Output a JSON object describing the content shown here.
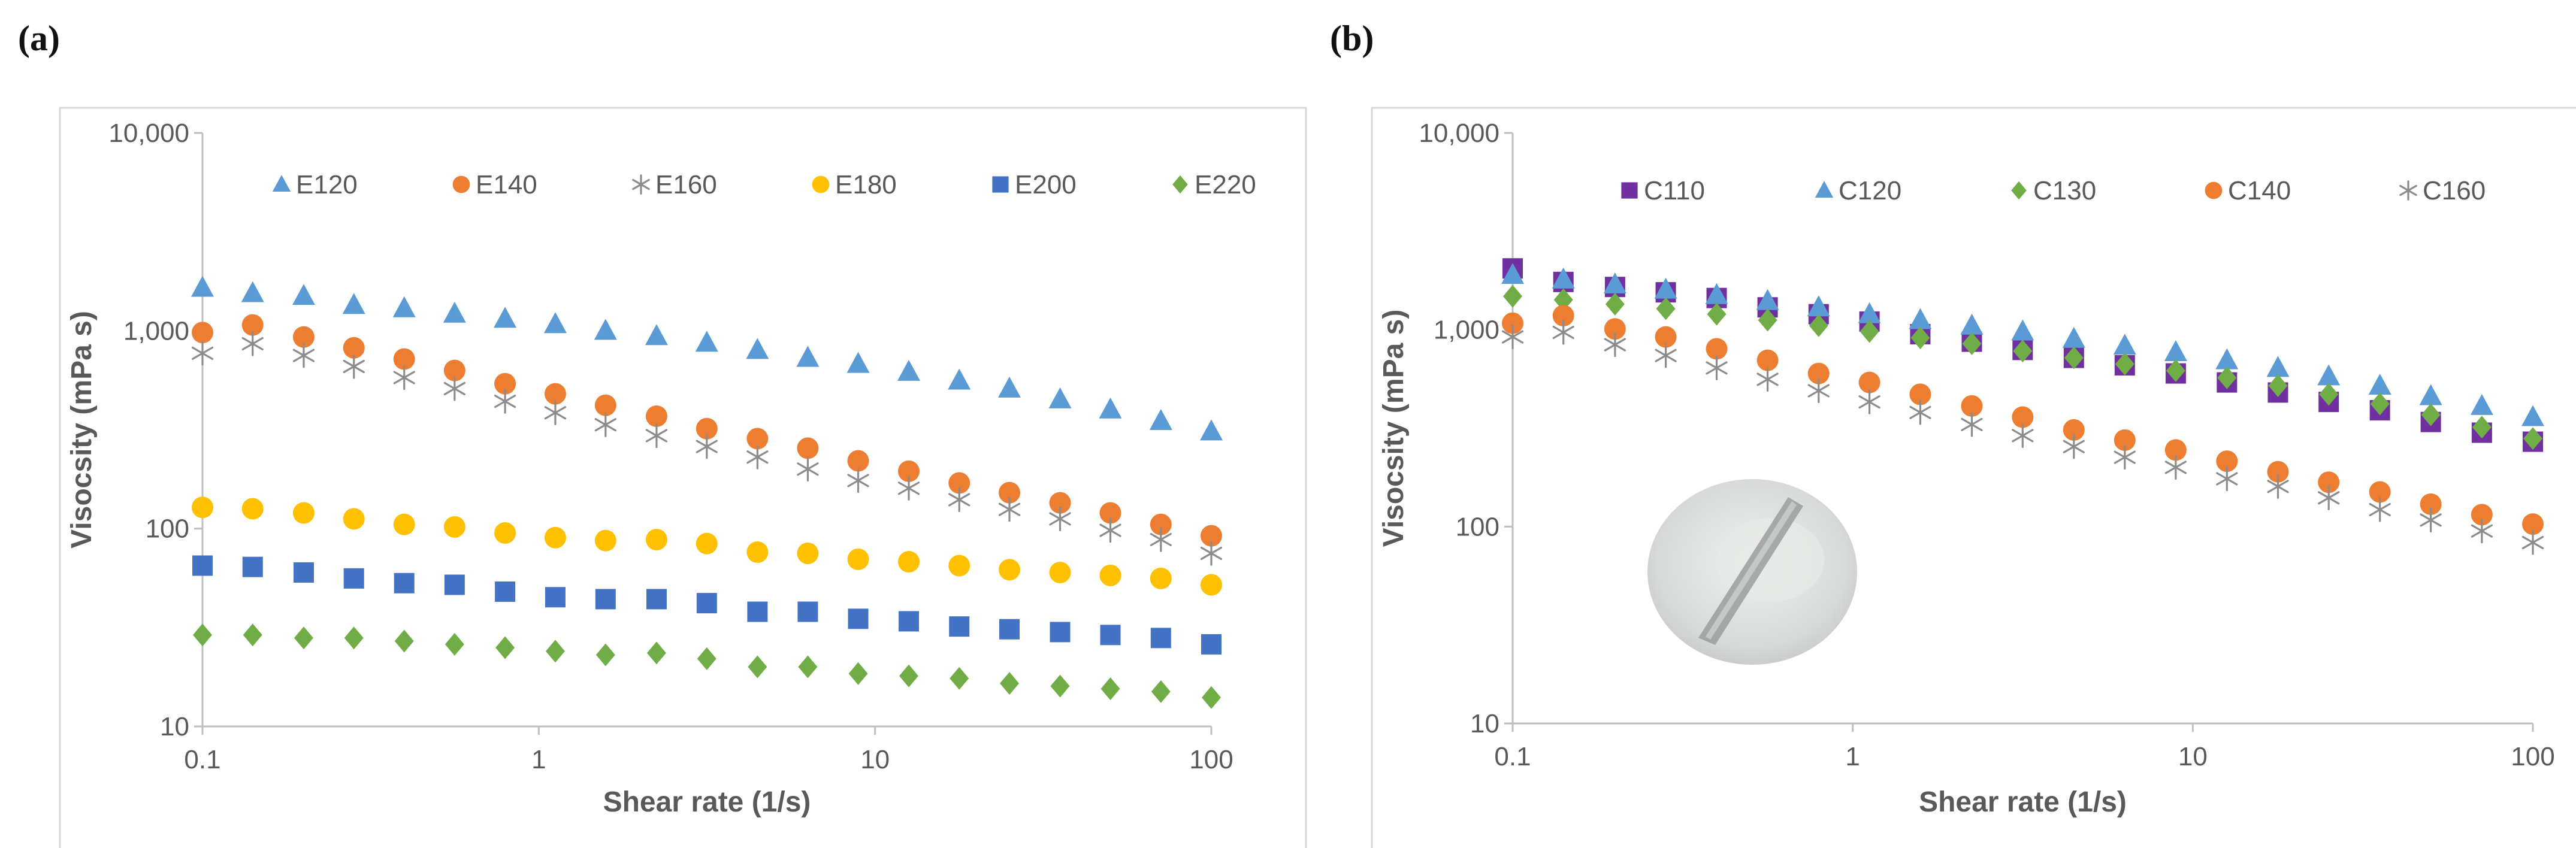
{
  "figure": {
    "panel_a_label": "(a)",
    "panel_b_label": "(b)"
  },
  "colors": {
    "blue_light": "#5b9bd5",
    "orange": "#ed7d31",
    "gray": "#8c8c8c",
    "yellow": "#ffc000",
    "blue_dark": "#4472c4",
    "green": "#70ad47",
    "purple": "#7030a0"
  },
  "chart_data": [
    {
      "type": "scatter",
      "panel": "(a)",
      "title": "",
      "xlabel": "Shear rate (1/s)",
      "ylabel": "Visocsity (mPa s)",
      "xscale": "log",
      "yscale": "log",
      "xlim": [
        0.1,
        100
      ],
      "ylim": [
        10,
        10000
      ],
      "xticks": [
        "0.1",
        "1",
        "10",
        "100"
      ],
      "yticks": [
        "10",
        "100",
        "1,000",
        "10,000"
      ],
      "legend_position": "top",
      "x": [
        0.1,
        0.141,
        0.2,
        0.282,
        0.398,
        0.562,
        0.794,
        1.12,
        1.58,
        2.24,
        3.16,
        4.47,
        6.31,
        8.91,
        12.6,
        17.8,
        25.1,
        35.5,
        50.1,
        70.8,
        100
      ],
      "series": [
        {
          "name": "E120",
          "marker": "triangle",
          "color": "#5b9bd5",
          "values": [
            1650,
            1550,
            1500,
            1350,
            1300,
            1220,
            1150,
            1080,
            1000,
            940,
            870,
            800,
            730,
            680,
            620,
            560,
            510,
            450,
            400,
            350,
            310
          ]
        },
        {
          "name": "E140",
          "marker": "circle",
          "color": "#ed7d31",
          "values": [
            980,
            1070,
            930,
            820,
            720,
            630,
            540,
            480,
            420,
            370,
            320,
            285,
            255,
            220,
            195,
            170,
            152,
            135,
            120,
            105,
            92
          ]
        },
        {
          "name": "E160",
          "marker": "asterisk",
          "color": "#8c8c8c",
          "values": [
            770,
            860,
            750,
            660,
            580,
            510,
            440,
            385,
            335,
            295,
            260,
            230,
            200,
            175,
            160,
            140,
            125,
            112,
            98,
            88,
            75
          ]
        },
        {
          "name": "E180",
          "marker": "circle",
          "color": "#ffc000",
          "values": [
            128,
            126,
            120,
            112,
            105,
            102,
            95,
            90,
            87,
            88,
            84,
            76,
            75,
            70,
            68,
            65,
            62,
            60,
            58,
            56,
            52
          ]
        },
        {
          "name": "E200",
          "marker": "square",
          "color": "#4472c4",
          "values": [
            65,
            64,
            60,
            56,
            53,
            52,
            48,
            45,
            44,
            44,
            42,
            38,
            38,
            35,
            34,
            32,
            31,
            30,
            29,
            28,
            26
          ]
        },
        {
          "name": "E220",
          "marker": "diamond",
          "color": "#70ad47",
          "values": [
            29,
            29,
            28,
            28,
            27,
            26,
            25,
            24,
            23,
            23.5,
            22,
            20,
            20,
            18.5,
            18,
            17.5,
            16.5,
            16,
            15.5,
            15,
            14
          ]
        }
      ]
    },
    {
      "type": "scatter",
      "panel": "(b)",
      "title": "",
      "xlabel": "Shear rate (1/s)",
      "ylabel": "Visocsity (mPa s)",
      "xscale": "log",
      "yscale": "log",
      "xlim": [
        0.1,
        100
      ],
      "ylim": [
        10,
        10000
      ],
      "xticks": [
        "0.1",
        "1",
        "10",
        "100"
      ],
      "yticks": [
        "10",
        "100",
        "1,000",
        "10,000"
      ],
      "legend_position": "top",
      "inset": "photograph of a sample",
      "x": [
        0.1,
        0.141,
        0.2,
        0.282,
        0.398,
        0.562,
        0.794,
        1.12,
        1.58,
        2.24,
        3.16,
        4.47,
        6.31,
        8.91,
        12.6,
        17.8,
        25.1,
        35.5,
        50.1,
        70.8,
        100
      ],
      "series": [
        {
          "name": "C110",
          "marker": "square",
          "color": "#7030a0",
          "values": [
            2050,
            1750,
            1650,
            1550,
            1450,
            1300,
            1200,
            1100,
            950,
            870,
            790,
            720,
            660,
            600,
            540,
            480,
            430,
            390,
            340,
            300,
            270
          ]
        },
        {
          "name": "C120",
          "marker": "triangle",
          "color": "#5b9bd5",
          "values": [
            1900,
            1800,
            1700,
            1600,
            1500,
            1400,
            1300,
            1200,
            1120,
            1050,
            980,
            900,
            830,
            770,
            700,
            640,
            580,
            520,
            460,
            410,
            360
          ]
        },
        {
          "name": "C130",
          "marker": "diamond",
          "color": "#70ad47",
          "values": [
            1480,
            1420,
            1350,
            1280,
            1200,
            1120,
            1050,
            980,
            910,
            850,
            780,
            720,
            670,
            620,
            570,
            520,
            470,
            420,
            370,
            320,
            280
          ]
        },
        {
          "name": "C140",
          "marker": "circle",
          "color": "#ed7d31",
          "values": [
            1080,
            1180,
            1010,
            920,
            800,
            700,
            600,
            540,
            470,
            410,
            360,
            310,
            275,
            245,
            215,
            190,
            168,
            150,
            130,
            115,
            103
          ]
        },
        {
          "name": "C160",
          "marker": "asterisk",
          "color": "#8c8c8c",
          "values": [
            920,
            970,
            840,
            740,
            640,
            560,
            490,
            430,
            380,
            330,
            290,
            255,
            225,
            200,
            175,
            160,
            140,
            122,
            108,
            95,
            83
          ]
        }
      ]
    }
  ]
}
